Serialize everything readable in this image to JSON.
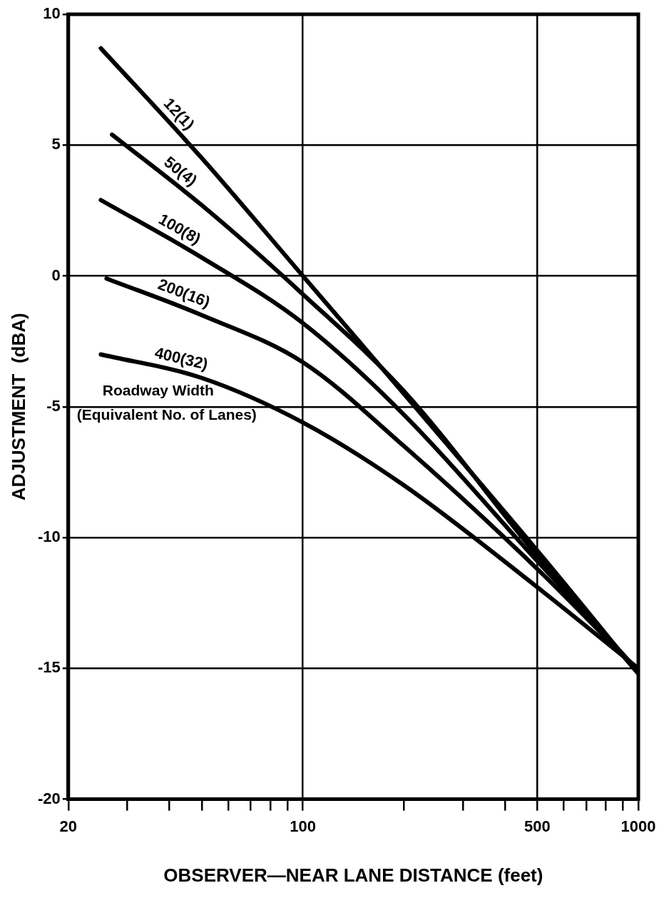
{
  "chart_data": {
    "type": "line",
    "xlabel": "OBSERVER—NEAR LANE DISTANCE (feet)",
    "ylabel": "ADJUSTMENT  (dBA)",
    "annotations": [
      "Roadway Width",
      "(Equivalent No. of Lanes)"
    ],
    "log": "x",
    "xlim": [
      20,
      1000
    ],
    "ylim": [
      -20,
      10
    ],
    "xticks": [
      20,
      {
        "value": 30,
        "label": null
      },
      {
        "value": 40,
        "label": null
      },
      {
        "value": 50,
        "label": null
      },
      {
        "value": 60,
        "label": null
      },
      {
        "value": 70,
        "label": null
      },
      {
        "value": 80,
        "label": null
      },
      {
        "value": 90,
        "label": null
      },
      100,
      {
        "value": 200,
        "label": null
      },
      {
        "value": 300,
        "label": null
      },
      {
        "value": 400,
        "label": null
      },
      500,
      {
        "value": 600,
        "label": null
      },
      {
        "value": 700,
        "label": null
      },
      {
        "value": 800,
        "label": null
      },
      {
        "value": 900,
        "label": null
      },
      1000
    ],
    "yticks": [
      -20,
      -15,
      -10,
      -5,
      0,
      5,
      10
    ],
    "grid": true,
    "legend": false,
    "marker": "none",
    "line_style": "solid",
    "series": [
      {
        "name": "12(1)",
        "color": "#000000",
        "x": [
          25,
          50,
          100,
          200,
          500,
          1000
        ],
        "values": [
          8.7,
          4.5,
          0,
          -4.5,
          -10.5,
          -15.2
        ]
      },
      {
        "name": "50(4)",
        "color": "#000000",
        "x": [
          27,
          50,
          100,
          200,
          500,
          1000
        ],
        "values": [
          5.4,
          2.7,
          -0.7,
          -4.4,
          -10.7,
          -15.2
        ]
      },
      {
        "name": "100(8)",
        "color": "#000000",
        "x": [
          25,
          50,
          100,
          200,
          500,
          1000
        ],
        "values": [
          2.9,
          0.7,
          -1.8,
          -5.3,
          -10.9,
          -15.1
        ]
      },
      {
        "name": "200(16)",
        "color": "#000000",
        "x": [
          26,
          50,
          100,
          200,
          500,
          1000
        ],
        "values": [
          -0.1,
          -1.5,
          -3.3,
          -6.5,
          -11.2,
          -15.1
        ]
      },
      {
        "name": "400(32)",
        "color": "#000000",
        "x": [
          25,
          50,
          100,
          200,
          500,
          1000
        ],
        "values": [
          -3,
          -3.9,
          -5.6,
          -8,
          -11.9,
          -15
        ]
      }
    ]
  }
}
